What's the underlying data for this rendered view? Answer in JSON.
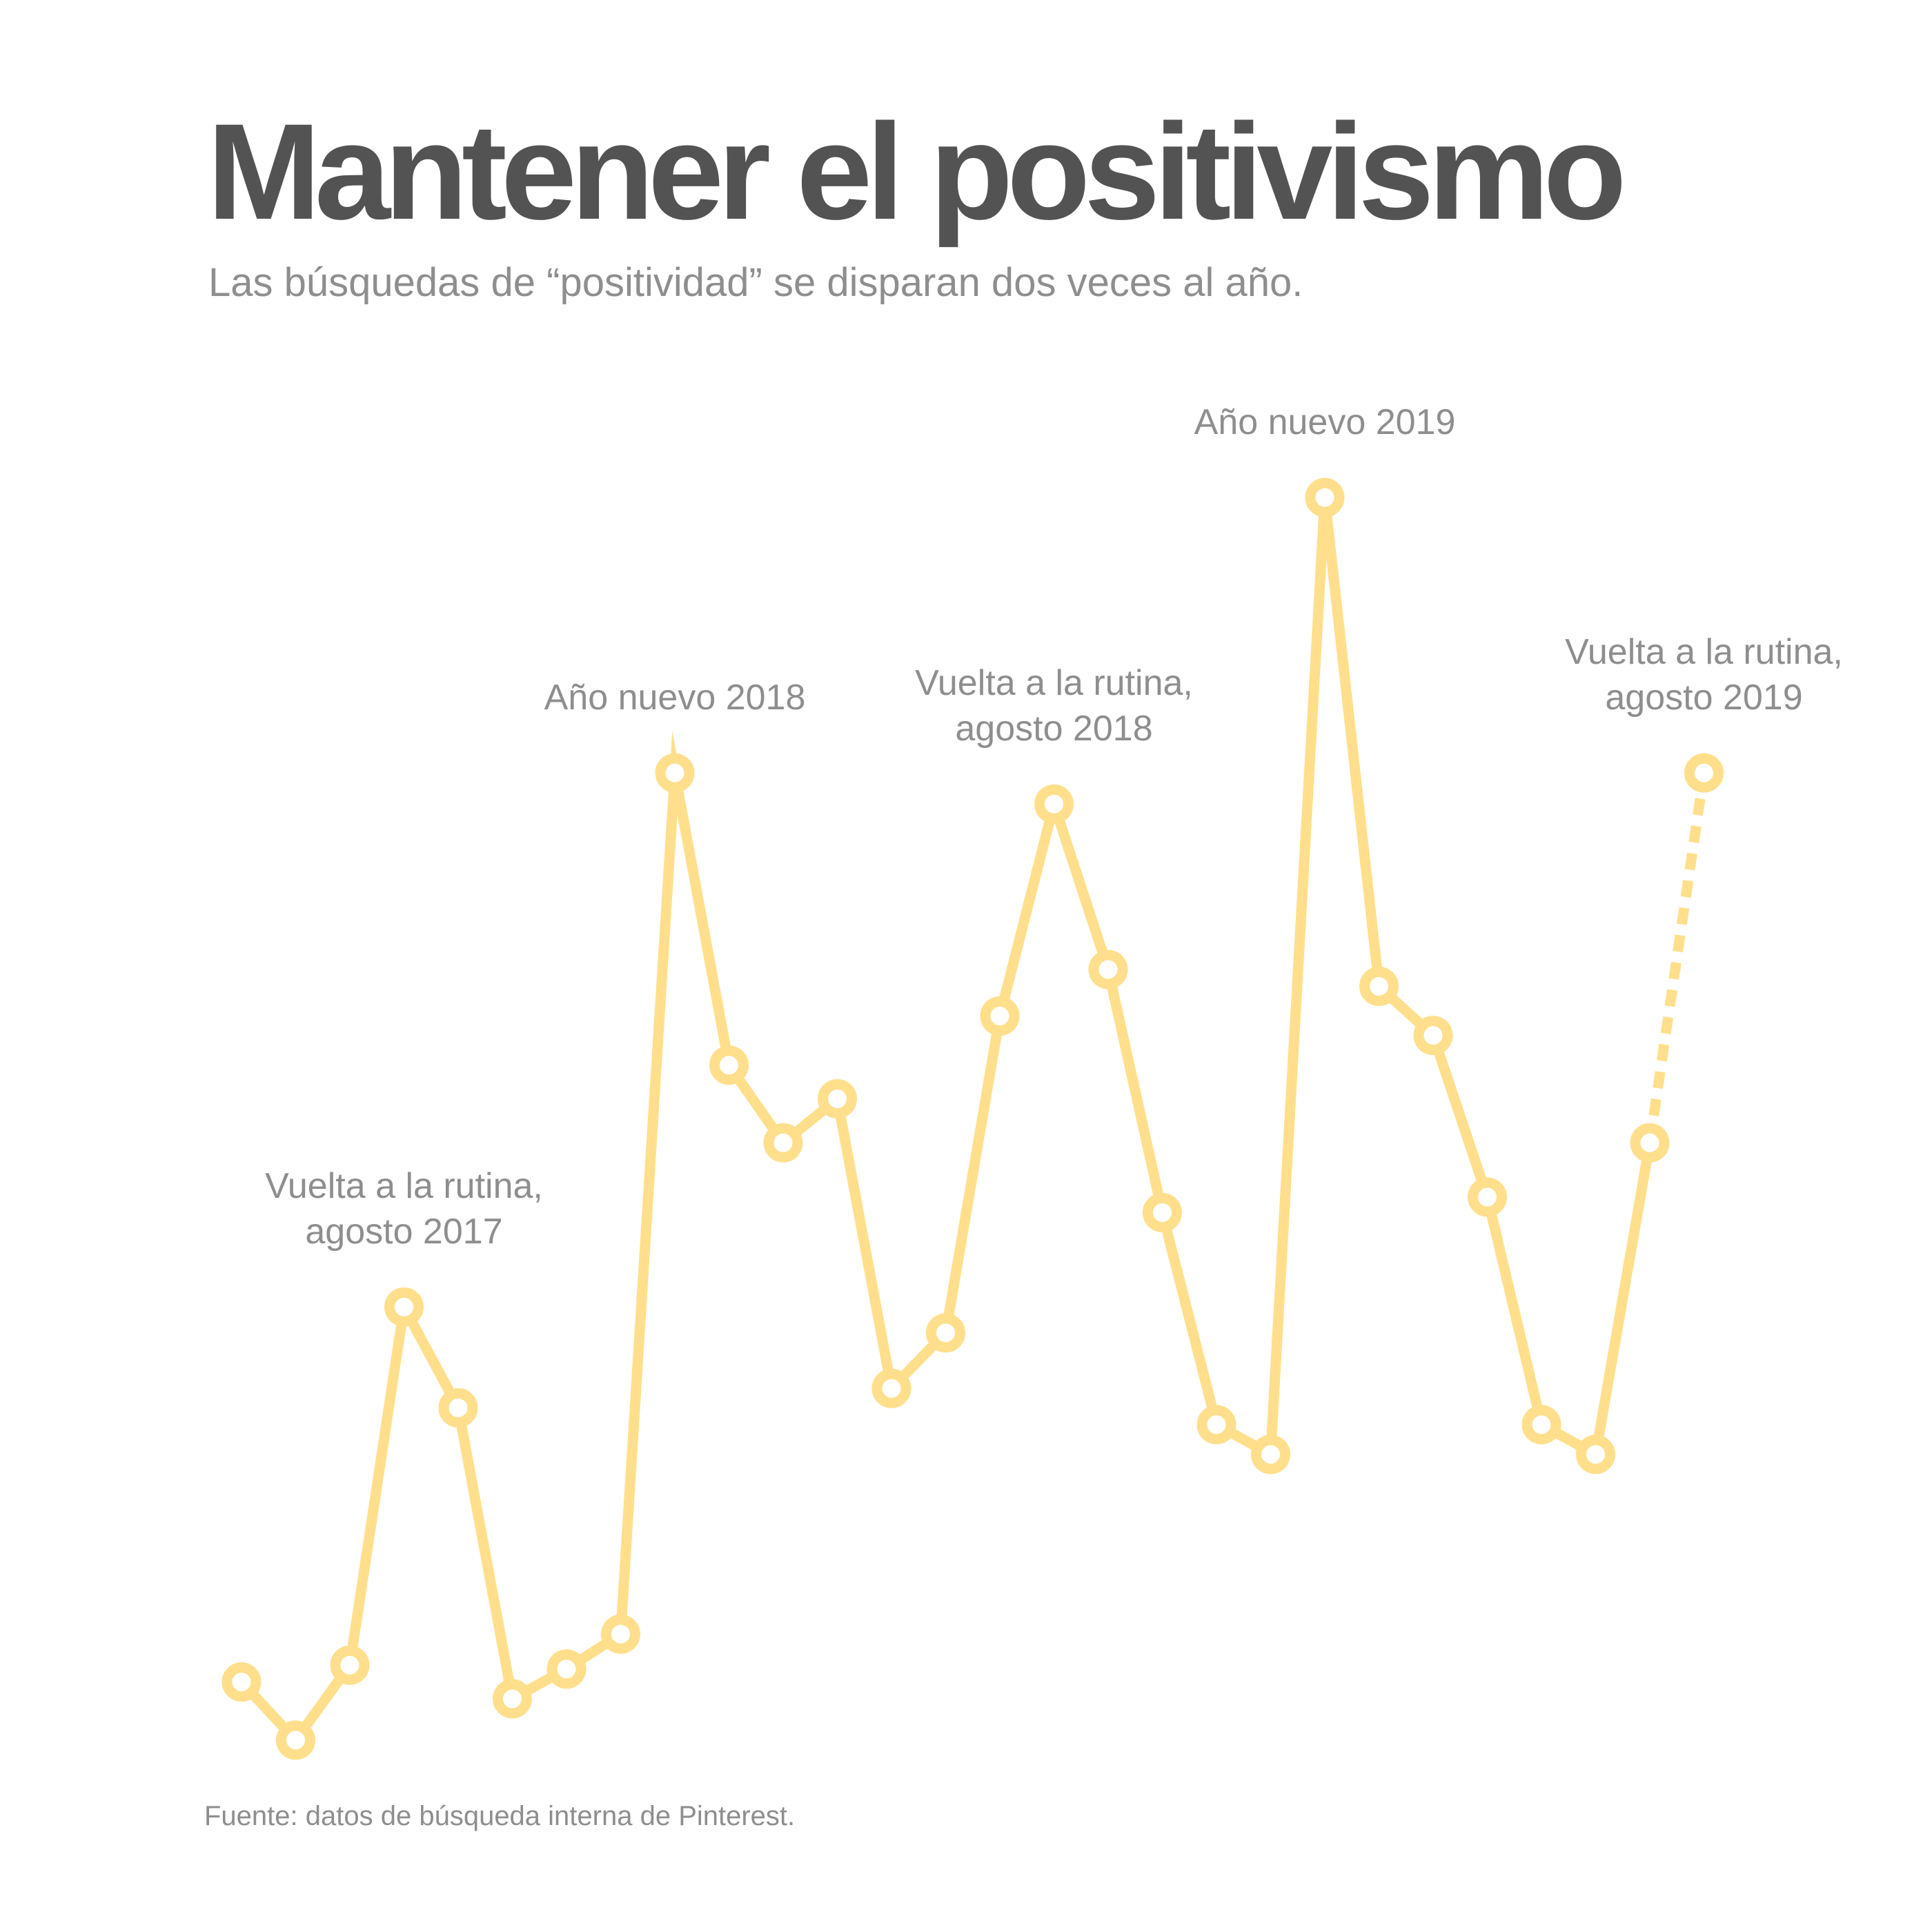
{
  "title": "Mantener el positivismo",
  "subtitle": "Las búsquedas de “positividad” se disparan dos veces al año.",
  "source": "Fuente: datos de búsqueda interna de Pinterest.",
  "colors": {
    "line": "#ffdf8c",
    "title": "#535353",
    "text": "#8e8e8e"
  },
  "chart_data": {
    "type": "line",
    "title": "Mantener el positivismo",
    "xlabel": "",
    "ylabel": "",
    "grid": false,
    "legend": "none",
    "ylim": [
      0,
      100
    ],
    "series": [
      {
        "values": [
          4.5,
          0,
          5.8,
          33.5,
          25.7,
          3.2,
          5.5,
          8.2,
          74.8,
          52.2,
          46.2,
          49.6,
          27.2,
          31.5,
          56.0,
          72.4,
          59.6,
          40.8,
          24.4,
          22.1,
          96.1,
          58.3,
          54.5,
          42.0,
          24.4,
          22.1,
          46.2,
          74.8
        ],
        "projected_from_index": 26
      }
    ],
    "annotations": [
      {
        "point_index": 3,
        "lines": [
          "Vuelta a la rutina,",
          "agosto 2017"
        ]
      },
      {
        "point_index": 8,
        "lines": [
          "Año nuevo 2018"
        ]
      },
      {
        "point_index": 15,
        "lines": [
          "Vuelta a la rutina,",
          "agosto 2018"
        ]
      },
      {
        "point_index": 20,
        "lines": [
          "Año nuevo 2019"
        ]
      },
      {
        "point_index": 27,
        "lines": [
          "Vuelta a la rutina,",
          "agosto 2019"
        ]
      }
    ]
  }
}
